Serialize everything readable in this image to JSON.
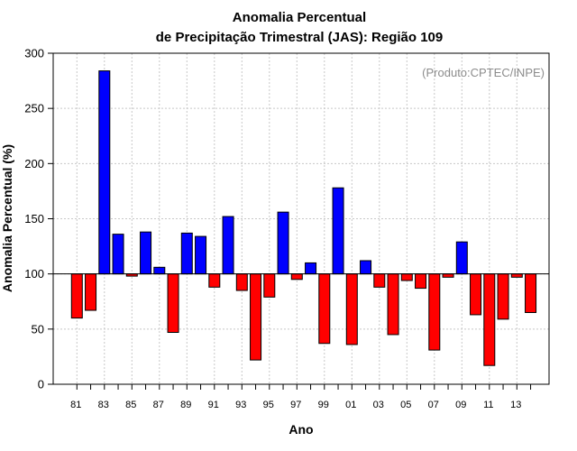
{
  "colors": {
    "above": "#0000ff",
    "below": "#ff0000",
    "credit": "#8c8c8c",
    "grid": "#c8c8c8"
  },
  "chart_data": {
    "type": "bar",
    "title_line1": "Anomalia Percentual",
    "title_line2": "de Precipitação Trimestral (JAS): Região 109",
    "xlabel": "Ano",
    "ylabel": "Anomalia Percentual (%)",
    "credit": "(Produto:CPTEC/INPE)",
    "baseline": 100,
    "ylim": [
      0,
      300
    ],
    "yticks": [
      "0",
      "50",
      "100",
      "150",
      "200",
      "250",
      "300"
    ],
    "x_ticklabels": [
      "81",
      "83",
      "85",
      "87",
      "89",
      "91",
      "93",
      "95",
      "97",
      "99",
      "01",
      "03",
      "05",
      "07",
      "09",
      "11",
      "13"
    ],
    "categories": [
      "1981",
      "1982",
      "1983",
      "1984",
      "1985",
      "1986",
      "1987",
      "1988",
      "1989",
      "1990",
      "1991",
      "1992",
      "1993",
      "1994",
      "1995",
      "1996",
      "1997",
      "1998",
      "1999",
      "2000",
      "2001",
      "2002",
      "2003",
      "2004",
      "2005",
      "2006",
      "2007",
      "2008",
      "2009",
      "2010",
      "2011",
      "2012",
      "2013",
      "2014"
    ],
    "values": [
      60,
      67,
      284,
      136,
      98,
      138,
      106,
      47,
      137,
      134,
      88,
      152,
      85,
      22,
      79,
      156,
      95,
      110,
      37,
      178,
      36,
      112,
      88,
      45,
      94,
      87,
      31,
      97,
      129,
      63,
      17,
      59,
      97,
      65
    ]
  }
}
